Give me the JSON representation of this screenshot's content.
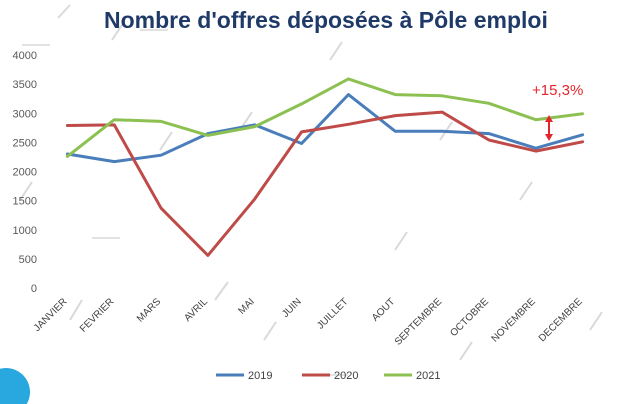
{
  "chart_data": {
    "type": "line",
    "title": "Nombre d'offres déposées à Pôle emploi",
    "xlabel": "",
    "ylabel": "",
    "categories": [
      "JANVIER",
      "FEVRIER",
      "MARS",
      "AVRIL",
      "MAI",
      "JUIN",
      "JUILLET",
      "AOUT",
      "SEPTEMBRE",
      "OCTOBRE",
      "NOVEMBRE",
      "DECEMBRE"
    ],
    "yticks": [
      "0",
      "500",
      "1000",
      "1500",
      "2000",
      "2500",
      "3000",
      "3500",
      "4000"
    ],
    "ylim": [
      0,
      4000
    ],
    "grid": false,
    "legend_position": "bottom",
    "series": [
      {
        "name": "2019",
        "color": "#4a7ebb",
        "values": [
          2300,
          2170,
          2280,
          2650,
          2800,
          2480,
          3320,
          2690,
          2690,
          2650,
          2400,
          2630
        ]
      },
      {
        "name": "2020",
        "color": "#be4b48",
        "values": [
          2790,
          2800,
          1370,
          560,
          1530,
          2680,
          2810,
          2960,
          3020,
          2540,
          2350,
          2510
        ]
      },
      {
        "name": "2021",
        "color": "#8cc152",
        "values": [
          2260,
          2890,
          2860,
          2620,
          2770,
          3160,
          3590,
          3320,
          3300,
          3170,
          2890,
          2990
        ]
      }
    ],
    "annotation": {
      "text": "+15,3%",
      "color": "#e3262d"
    }
  }
}
